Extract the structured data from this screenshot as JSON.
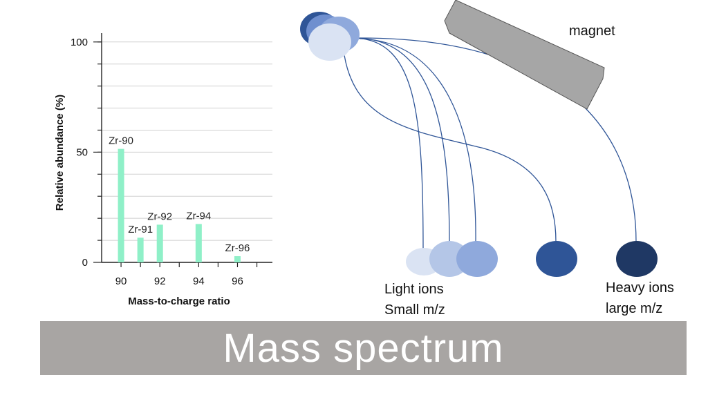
{
  "chart_data": {
    "type": "bar",
    "xlabel": "Mass-to-charge ratio",
    "ylabel": "Relative abundance (%)",
    "xlim": [
      89.0,
      97.8
    ],
    "ylim": [
      0,
      104
    ],
    "x_ticks": [
      90,
      92,
      94,
      96
    ],
    "y_ticks": [
      0,
      50,
      100
    ],
    "grid": true,
    "points": [
      {
        "label": "Zr-90",
        "x": 90,
        "value": 51.5
      },
      {
        "label": "Zr-91",
        "x": 91,
        "value": 11.2
      },
      {
        "label": "Zr-92",
        "x": 92,
        "value": 17.1
      },
      {
        "label": "Zr-94",
        "x": 94,
        "value": 17.4
      },
      {
        "label": "Zr-96",
        "x": 96,
        "value": 2.8
      }
    ],
    "bar_color": "#8ff0c8"
  },
  "diagram": {
    "magnet_label": "magnet",
    "light_label_line1": "Light ions",
    "light_label_line2": "Small m/z",
    "heavy_label_line1": "Heavy ions",
    "heavy_label_line2": "large m/z",
    "ion_colors": [
      "#2f5597",
      "#6f8fcf",
      "#8fa9dc",
      "#b4c6e7",
      "#dae3f3",
      "#1f3864"
    ],
    "magnet_color": "#a6a6a6",
    "path_color": "#2f5597"
  },
  "banner": {
    "title": "Mass spectrum",
    "background": "#a8a5a3"
  }
}
